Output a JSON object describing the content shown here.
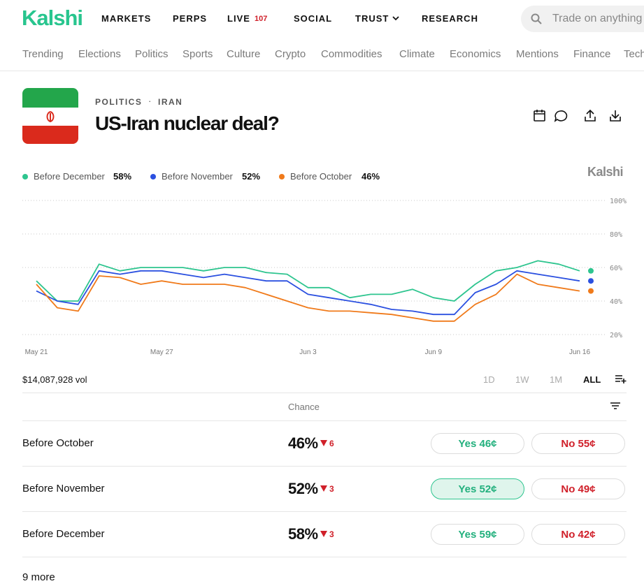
{
  "nav": {
    "logo": "Kalshi",
    "links": [
      "MARKETS",
      "PERPS",
      "LIVE",
      "SOCIAL",
      "TRUST",
      "RESEARCH"
    ],
    "live_count": 107,
    "search_placeholder": "Trade on anything"
  },
  "topics": [
    "Trending",
    "Elections",
    "Politics",
    "Sports",
    "Culture",
    "Crypto",
    "Commodities",
    "Climate",
    "Economics",
    "Mentions",
    "Finance",
    "Tech"
  ],
  "header": {
    "breadcrumb": [
      "POLITICS",
      "IRAN"
    ],
    "title": "US-Iran nuclear deal?"
  },
  "chart_data": {
    "type": "line",
    "watermark": "Kalshi",
    "categories": [
      "May 21",
      null,
      null,
      null,
      null,
      null,
      "May 27",
      null,
      null,
      null,
      null,
      null,
      null,
      "Jun 3",
      null,
      null,
      null,
      null,
      null,
      "Jun 9",
      null,
      null,
      null,
      null,
      null,
      null,
      "Jun 16"
    ],
    "series": [
      {
        "name": "Before December",
        "color": "#2ec58f",
        "value": 58,
        "value_label": "58%",
        "values": [
          52,
          40,
          40,
          62,
          58,
          60,
          60,
          60,
          58,
          60,
          60,
          57,
          56,
          48,
          48,
          42,
          44,
          44,
          47,
          42,
          40,
          50,
          58,
          60,
          64,
          62,
          58
        ]
      },
      {
        "name": "Before November",
        "color": "#2b50e0",
        "value": 52,
        "value_label": "52%",
        "values": [
          46,
          40,
          38,
          58,
          56,
          58,
          58,
          56,
          54,
          56,
          54,
          52,
          52,
          44,
          42,
          40,
          38,
          35,
          34,
          32,
          32,
          45,
          50,
          58,
          56,
          54,
          52
        ]
      },
      {
        "name": "Before October",
        "color": "#f07a1a",
        "value": 46,
        "value_label": "46%",
        "values": [
          50,
          36,
          34,
          55,
          54,
          50,
          52,
          50,
          50,
          50,
          48,
          44,
          40,
          36,
          34,
          34,
          33,
          32,
          30,
          28,
          28,
          38,
          44,
          56,
          50,
          48,
          46
        ]
      }
    ],
    "ylim": [
      15,
      100
    ],
    "yticks": [
      {
        "value": 20,
        "label": "20%"
      },
      {
        "value": 40,
        "label": "40%"
      },
      {
        "value": 60,
        "label": "60%"
      },
      {
        "value": 80,
        "label": "80%"
      },
      {
        "value": 100,
        "label": "100%"
      }
    ],
    "grid": true
  },
  "volume": "$14,087,928 vol",
  "time_ranges": [
    "1D",
    "1W",
    "1M",
    "ALL"
  ],
  "table": {
    "header": "Chance",
    "rows": [
      {
        "name": "Before October",
        "chance": "46%",
        "change": 6,
        "yes": "Yes 46¢",
        "no": "No 55¢"
      },
      {
        "name": "Before November",
        "chance": "52%",
        "change": 3,
        "yes": "Yes 52¢",
        "no": "No 49¢"
      },
      {
        "name": "Before December",
        "chance": "58%",
        "change": 3,
        "yes": "Yes 59¢",
        "no": "No 42¢"
      }
    ]
  },
  "more": "9 more"
}
